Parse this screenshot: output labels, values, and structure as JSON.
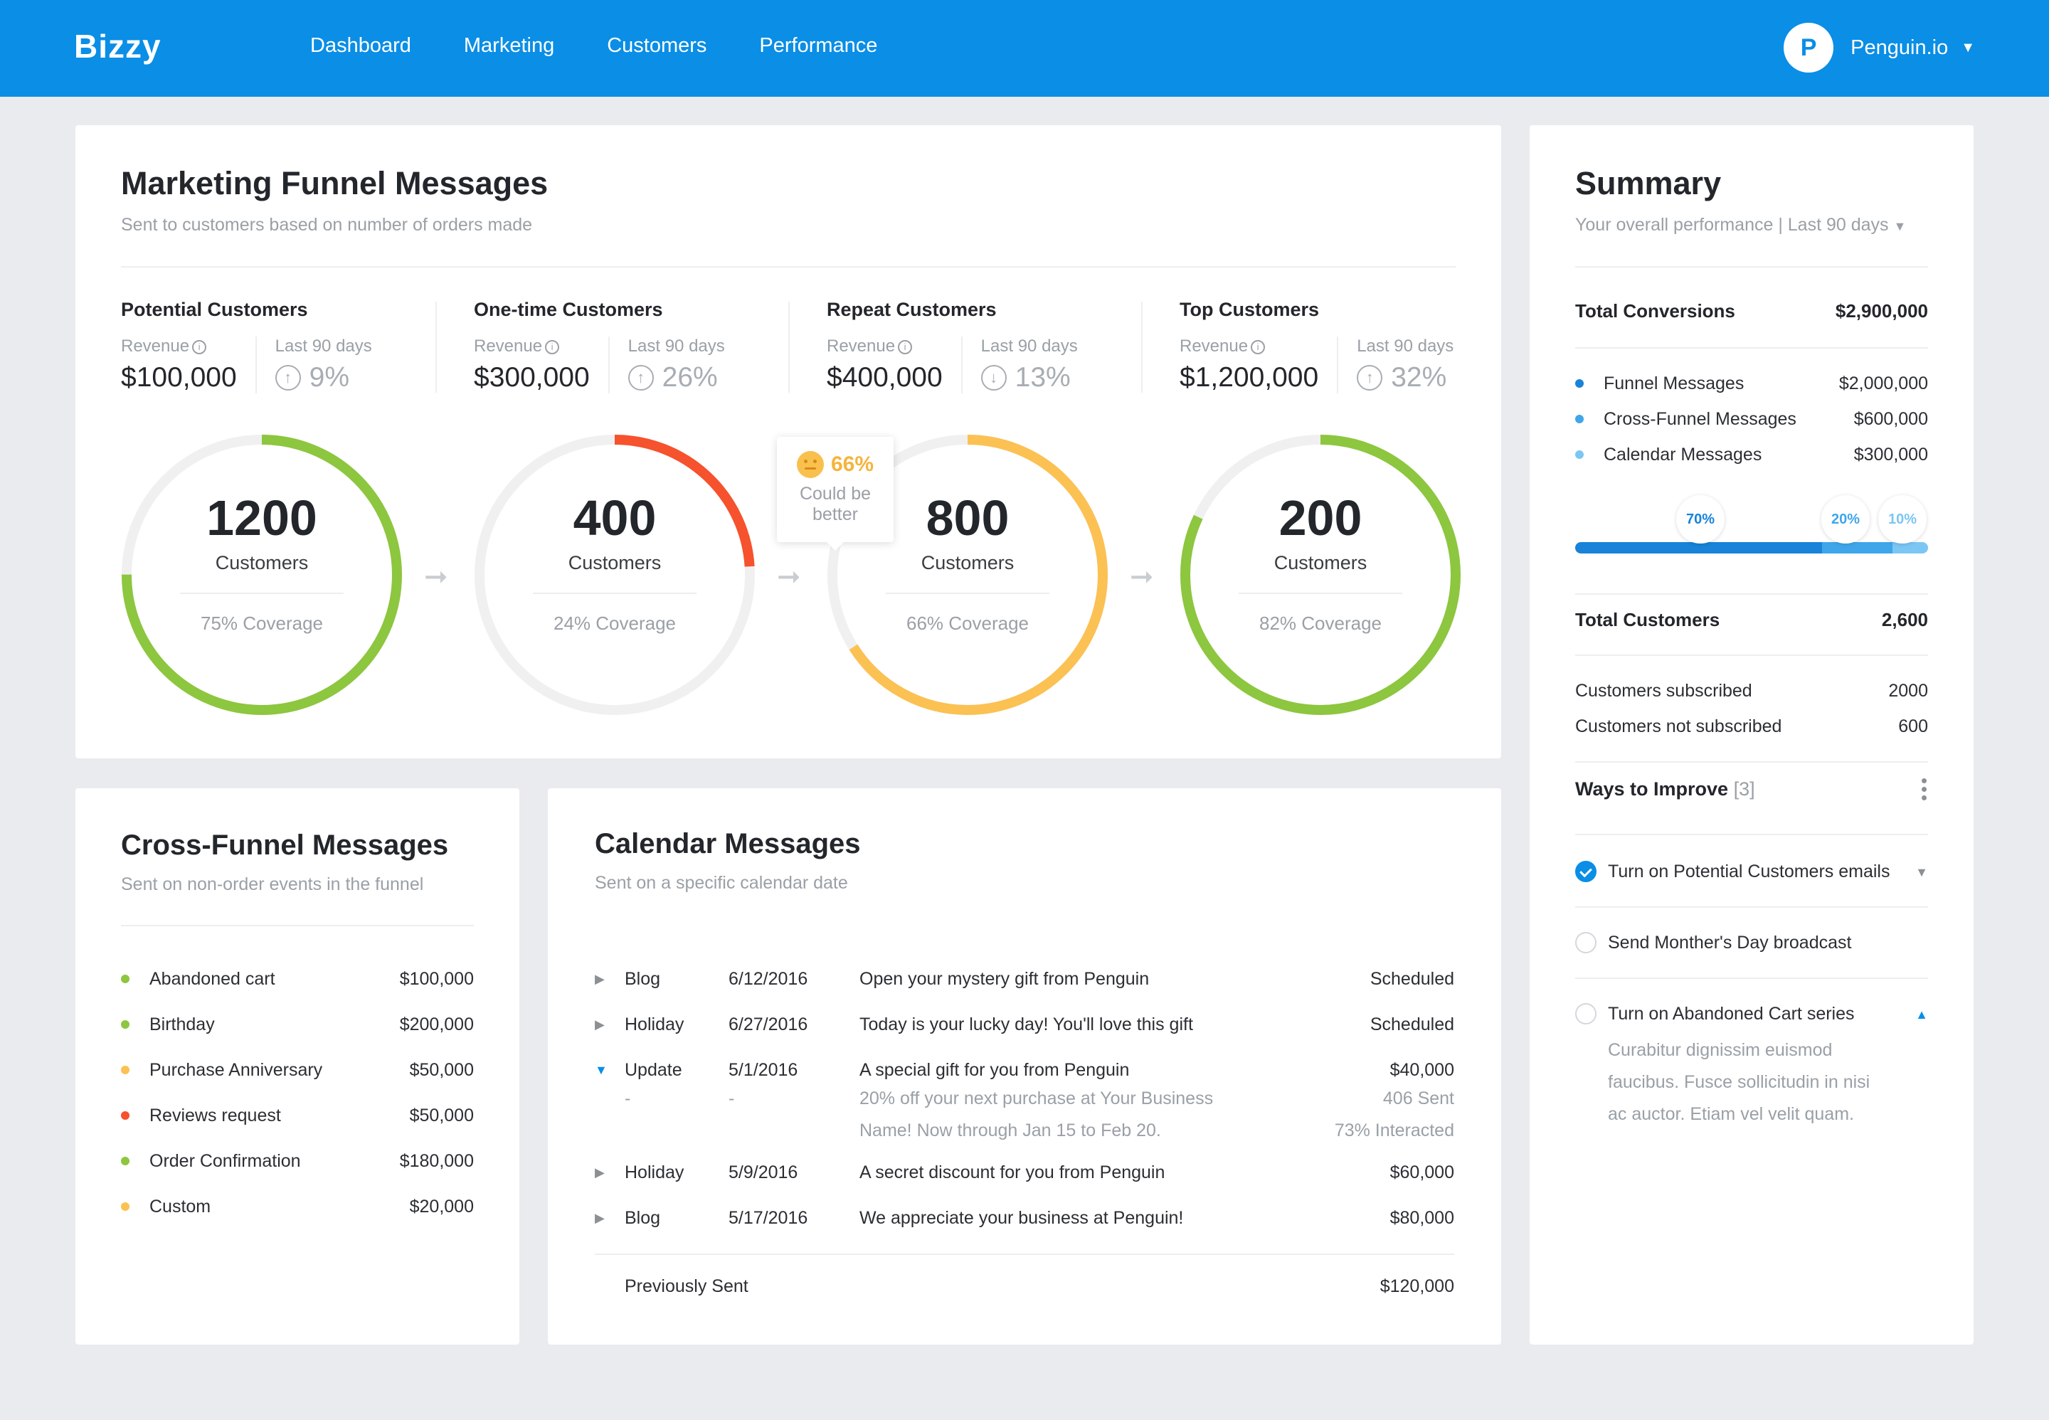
{
  "app": {
    "brand": "Bizzy",
    "nav": [
      "Dashboard",
      "Marketing",
      "Customers",
      "Performance"
    ],
    "account": {
      "avatar_letter": "P",
      "name": "Penguin.io"
    }
  },
  "funnel": {
    "title": "Marketing Funnel Messages",
    "subtitle": "Sent to customers based on number of orders made",
    "revenue_label": "Revenue",
    "period_label": "Last 90 days",
    "customers_label": "Customers",
    "stages": [
      {
        "name": "Potential Customers",
        "revenue": "$100,000",
        "change": "9%",
        "direction": "up",
        "count": "1200",
        "coverage": "75% Coverage",
        "fill": 0.75,
        "color": "#8dc63f"
      },
      {
        "name": "One-time Customers",
        "revenue": "$300,000",
        "change": "26%",
        "direction": "up",
        "count": "400",
        "coverage": "24% Coverage",
        "fill": 0.24,
        "color": "#f5522d"
      },
      {
        "name": "Repeat Customers",
        "revenue": "$400,000",
        "change": "13%",
        "direction": "down",
        "count": "800",
        "coverage": "66% Coverage",
        "fill": 0.66,
        "color": "#fbc153"
      },
      {
        "name": "Top Customers",
        "revenue": "$1,200,000",
        "change": "32%",
        "direction": "up",
        "count": "200",
        "coverage": "82% Coverage",
        "fill": 0.82,
        "color": "#8dc63f"
      }
    ],
    "tooltip": {
      "pct": "66%",
      "text_line1": "Could be",
      "text_line2": "better"
    }
  },
  "cross_funnel": {
    "title": "Cross-Funnel Messages",
    "subtitle": "Sent on non-order events in the funnel",
    "items": [
      {
        "label": "Abandoned cart",
        "value": "$100,000",
        "color": "#8dc63f"
      },
      {
        "label": "Birthday",
        "value": "$200,000",
        "color": "#8dc63f"
      },
      {
        "label": "Purchase Anniversary",
        "value": "$50,000",
        "color": "#fbc153"
      },
      {
        "label": "Reviews request",
        "value": "$50,000",
        "color": "#f5522d"
      },
      {
        "label": "Order Confirmation",
        "value": "$180,000",
        "color": "#8dc63f"
      },
      {
        "label": "Custom",
        "value": "$20,000",
        "color": "#fbc153"
      }
    ]
  },
  "calendar": {
    "title": "Calendar Messages",
    "subtitle": "Sent on a specific calendar date",
    "rows": [
      {
        "type": "Blog",
        "date": "6/12/2016",
        "message": "Open your mystery gift from Penguin",
        "status": "Scheduled",
        "expanded": false
      },
      {
        "type": "Holiday",
        "date": "6/27/2016",
        "message": "Today is your lucky day! You'll love this gift",
        "status": "Scheduled",
        "expanded": false
      },
      {
        "type": "Update",
        "date": "5/1/2016",
        "message": "A special gift for you from Penguin",
        "status": "$40,000",
        "expanded": true
      },
      {
        "type": "Holiday",
        "date": "5/9/2016",
        "message": "A secret discount for you from Penguin",
        "status": "$60,000",
        "expanded": false
      },
      {
        "type": "Blog",
        "date": "5/17/2016",
        "message": "We appreciate your business at Penguin!",
        "status": "$80,000",
        "expanded": false
      }
    ],
    "detail": {
      "type": "-",
      "date": "-",
      "line1": "20% off your next purchase at Your Business",
      "line2": "Name! Now through Jan 15 to Feb 20.",
      "sent": "406 Sent",
      "interacted": "73% Interacted"
    },
    "previously_sent": {
      "label": "Previously Sent",
      "value": "$120,000"
    }
  },
  "summary": {
    "title": "Summary",
    "subtitle": "Your overall performance | Last 90 days",
    "total_conversions": {
      "label": "Total Conversions",
      "value": "$2,900,000"
    },
    "breakdown": [
      {
        "label": "Funnel Messages",
        "value": "$2,000,000",
        "color": "#1883d8"
      },
      {
        "label": "Cross-Funnel Messages",
        "value": "$600,000",
        "color": "#3fa6ea"
      },
      {
        "label": "Calendar Messages",
        "value": "$300,000",
        "color": "#7cc6f3"
      }
    ],
    "bar_shares": [
      {
        "label": "70%",
        "share": 0.7,
        "color": "#1883d8"
      },
      {
        "label": "20%",
        "share": 0.2,
        "color": "#3fa6ea"
      },
      {
        "label": "10%",
        "share": 0.1,
        "color": "#7cc6f3"
      }
    ],
    "total_customers": {
      "label": "Total Customers",
      "value": "2,600"
    },
    "subscribed": {
      "label": "Customers subscribed",
      "value": "2000"
    },
    "not_subscribed": {
      "label": "Customers not subscribed",
      "value": "600"
    },
    "ways": {
      "title": "Ways to Improve",
      "count": "[3]",
      "items": [
        {
          "label": "Turn on Potential Customers emails",
          "done": true
        },
        {
          "label": "Send Monther's Day broadcast",
          "done": false
        },
        {
          "label": "Turn on Abandoned Cart series",
          "done": false
        }
      ],
      "desc_line1": "Curabitur dignissim euismod",
      "desc_line2": "faucibus. Fusce sollicitudin in nisi",
      "desc_line3": "ac auctor. Etiam vel velit quam."
    }
  }
}
